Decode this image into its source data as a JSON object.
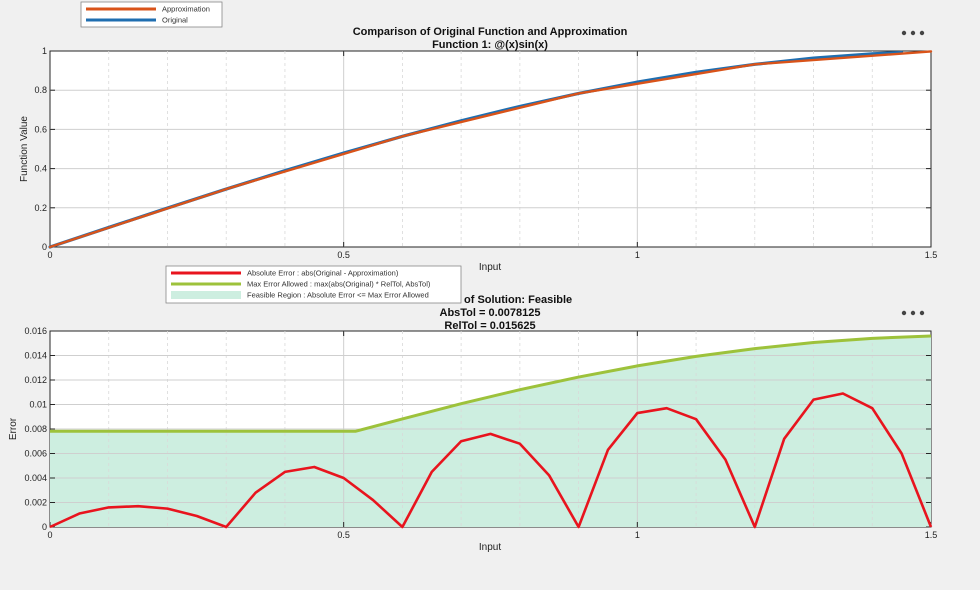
{
  "colors": {
    "original": "#1f6eb0",
    "approximation": "#d95319",
    "absolute_error": "#e8141e",
    "max_error": "#9dc23b",
    "feasible_region": "#cdeee0"
  },
  "icons": {
    "top_menu": "more-options-icon",
    "bottom_menu": "more-options-icon"
  },
  "chart_data": [
    {
      "type": "line",
      "title": "Comparison of Original Function and Approximation",
      "subtitle": "Function 1: @(x)sin(x)",
      "xlabel": "Input",
      "ylabel": "Function Value",
      "xlim": [
        0,
        1.5
      ],
      "ylim": [
        0,
        1
      ],
      "xticks": [
        "0",
        "0.5",
        "1",
        "1.5"
      ],
      "yticks": [
        "0",
        "0.2",
        "0.4",
        "0.6",
        "0.8",
        "1"
      ],
      "grid": true,
      "legend": [
        "Approximation",
        "Original"
      ],
      "legend_position": "top-left, outside",
      "series": [
        {
          "name": "Original",
          "x": [
            0,
            0.1,
            0.2,
            0.3,
            0.4,
            0.5,
            0.6,
            0.7,
            0.8,
            0.9,
            1.0,
            1.1,
            1.2,
            1.3,
            1.4,
            1.45
          ],
          "y": [
            0,
            0.0998,
            0.1987,
            0.2955,
            0.3894,
            0.4794,
            0.5646,
            0.6442,
            0.7174,
            0.7833,
            0.8415,
            0.8912,
            0.932,
            0.9636,
            0.9854,
            0.9927
          ]
        },
        {
          "name": "Approximation",
          "x": [
            0,
            0.3,
            0.6,
            0.9,
            1.2,
            1.5
          ],
          "y": [
            0,
            0.2955,
            0.5646,
            0.7833,
            0.932,
            0.9975
          ]
        }
      ]
    },
    {
      "type": "line",
      "title": "Status of Solution: Feasible",
      "title_visible": "of Solution: Feasible",
      "subtitle": "AbsTol = 0.0078125",
      "subtitle2": "RelTol = 0.015625",
      "xlabel": "Input",
      "ylabel": "Error",
      "xlim": [
        0,
        1.5
      ],
      "ylim": [
        0,
        0.016
      ],
      "xticks": [
        "0",
        "0.5",
        "1",
        "1.5"
      ],
      "yticks": [
        "0",
        "0.002",
        "0.004",
        "0.006",
        "0.008",
        "0.01",
        "0.012",
        "0.014",
        "0.016"
      ],
      "grid": true,
      "legend": [
        "Absolute Error : abs(Original - Approximation)",
        "Max Error Allowed : max(abs(Original) * RelTol, AbsTol)",
        "Feasible Region : Absolute Error <= Max Error Allowed"
      ],
      "legend_position": "top-left, overlapping title",
      "series": [
        {
          "name": "Absolute Error : abs(Original - Approximation)",
          "x": [
            0,
            0.05,
            0.1,
            0.15,
            0.2,
            0.25,
            0.3,
            0.35,
            0.4,
            0.45,
            0.5,
            0.55,
            0.6,
            0.65,
            0.7,
            0.75,
            0.8,
            0.85,
            0.9,
            0.95,
            1.0,
            1.05,
            1.1,
            1.15,
            1.2,
            1.25,
            1.3,
            1.35,
            1.4,
            1.45,
            1.5
          ],
          "y": [
            0,
            0.0011,
            0.0016,
            0.0017,
            0.0015,
            0.0009,
            0,
            0.0028,
            0.0045,
            0.0049,
            0.004,
            0.0022,
            0,
            0.0045,
            0.007,
            0.0076,
            0.0068,
            0.0042,
            0,
            0.0063,
            0.0093,
            0.0097,
            0.0088,
            0.0055,
            0,
            0.0072,
            0.0104,
            0.0109,
            0.0097,
            0.006,
            0
          ]
        },
        {
          "name": "Max Error Allowed : max(abs(Original) * RelTol, AbsTol)",
          "x": [
            0,
            0.52,
            0.6,
            0.7,
            0.8,
            0.9,
            1.0,
            1.1,
            1.2,
            1.3,
            1.4,
            1.5
          ],
          "y": [
            0.0078125,
            0.0078125,
            0.00882,
            0.01007,
            0.01121,
            0.01224,
            0.01315,
            0.01393,
            0.01456,
            0.01506,
            0.0154,
            0.01559
          ]
        },
        {
          "name": "Feasible Region : Absolute Error <= Max Error Allowed",
          "type": "area",
          "x": [
            0,
            0.52,
            0.6,
            0.7,
            0.8,
            0.9,
            1.0,
            1.1,
            1.2,
            1.3,
            1.4,
            1.5
          ],
          "y": [
            0.0078125,
            0.0078125,
            0.00882,
            0.01007,
            0.01121,
            0.01224,
            0.01315,
            0.01393,
            0.01456,
            0.01506,
            0.0154,
            0.01559
          ]
        }
      ]
    }
  ]
}
